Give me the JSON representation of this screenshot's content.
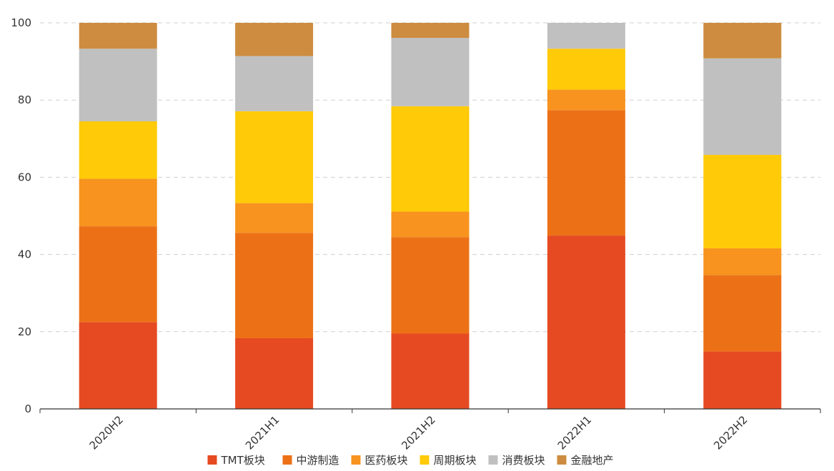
{
  "chart_data": {
    "type": "bar",
    "stacked": true,
    "categories": [
      "2020H2",
      "2021H1",
      "2021H2",
      "2022H1",
      "2022H2"
    ],
    "series": [
      {
        "name": "TMT板块",
        "color": "#E64A22",
        "values": [
          22.5,
          18.3,
          19.5,
          44.9,
          14.9
        ]
      },
      {
        "name": "中游制造",
        "color": "#EC7116",
        "values": [
          24.8,
          27.3,
          25.0,
          32.5,
          19.8
        ]
      },
      {
        "name": "医药板块",
        "color": "#F7931E",
        "values": [
          12.3,
          7.7,
          6.6,
          5.3,
          6.9
        ]
      },
      {
        "name": "周期板块",
        "color": "#FFCA08",
        "values": [
          14.9,
          23.8,
          27.3,
          10.6,
          24.2
        ]
      },
      {
        "name": "消费板块",
        "color": "#C0C0C0",
        "values": [
          18.8,
          14.3,
          17.7,
          6.7,
          25.0
        ]
      },
      {
        "name": "金融地产",
        "color": "#CD8C3F",
        "values": [
          6.7,
          8.6,
          3.9,
          0.0,
          9.2
        ]
      }
    ],
    "ylim": [
      0,
      100
    ],
    "yticks": [
      0,
      20,
      40,
      60,
      80,
      100
    ],
    "grid": true,
    "legend_position": "bottom"
  }
}
